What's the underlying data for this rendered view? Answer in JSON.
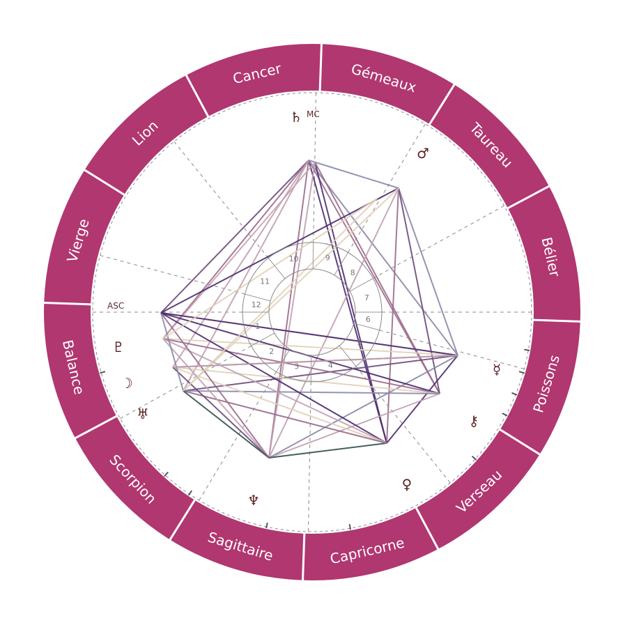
{
  "colors": {
    "ring": "#b03770",
    "ring_divider": "#ffffff",
    "sign_text": "#ffffff",
    "dashed": "#888888",
    "house_num": "#777777",
    "planet": "#5a1f1f"
  },
  "signs": [
    "Cancer",
    "Gémeaux",
    "Taureau",
    "Bélier",
    "Poissons",
    "Verseau",
    "Capricorne",
    "Sagittaire",
    "Scorpion",
    "Balance",
    "Vierge",
    "Lion"
  ],
  "house_numbers": [
    "1",
    "2",
    "3",
    "4",
    "5",
    "6",
    "7",
    "8",
    "9",
    "10",
    "11",
    "12"
  ],
  "angles": {
    "asc": "ASC",
    "mc": "MC"
  },
  "planets": [
    {
      "name": "saturn",
      "glyph": "♄"
    },
    {
      "name": "mars",
      "glyph": "♂"
    },
    {
      "name": "mercury",
      "glyph": "☿"
    },
    {
      "name": "chiron",
      "glyph": "⚷"
    },
    {
      "name": "venus",
      "glyph": "♀"
    },
    {
      "name": "neptune",
      "glyph": "♆"
    },
    {
      "name": "uranus",
      "glyph": "♅"
    },
    {
      "name": "moon",
      "glyph": "☽"
    },
    {
      "name": "pluto",
      "glyph": "♇"
    }
  ],
  "aspect_colors": [
    "#4a2a6e",
    "#6a4a7a",
    "#9a6a8a",
    "#c0a0b0",
    "#e0d0b8",
    "#2f5048",
    "#8a88a8",
    "#c8a0b0"
  ]
}
